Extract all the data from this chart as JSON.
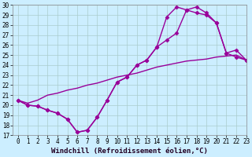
{
  "line1_x": [
    0,
    1,
    2,
    3,
    4,
    5,
    6,
    7,
    8,
    9,
    10,
    11,
    12,
    13,
    14,
    15,
    16,
    17,
    18,
    19,
    20,
    21,
    22,
    23
  ],
  "line1_y": [
    20.5,
    20.0,
    19.9,
    19.5,
    19.2,
    18.6,
    17.3,
    17.5,
    18.8,
    20.5,
    22.3,
    22.8,
    24.0,
    24.5,
    25.8,
    28.8,
    29.8,
    29.5,
    29.8,
    29.2,
    28.2,
    25.2,
    24.8,
    24.5
  ],
  "line1_markers": true,
  "line2_x": [
    0,
    1,
    2,
    3,
    4,
    5,
    6,
    7,
    8,
    9,
    10,
    11,
    12,
    13,
    14,
    15,
    16,
    17,
    18,
    19,
    20,
    21,
    22,
    23
  ],
  "line2_y": [
    20.5,
    20.2,
    20.5,
    21.0,
    21.2,
    21.5,
    21.7,
    22.0,
    22.2,
    22.5,
    22.8,
    23.0,
    23.2,
    23.5,
    23.8,
    24.0,
    24.2,
    24.4,
    24.5,
    24.6,
    24.8,
    24.9,
    25.0,
    24.5
  ],
  "line2_markers": false,
  "line3_x": [
    0,
    1,
    2,
    3,
    4,
    5,
    6,
    7,
    8,
    9,
    10,
    11,
    12,
    13,
    14,
    15,
    16,
    17,
    18,
    19,
    20,
    21,
    22,
    23
  ],
  "line3_y": [
    20.5,
    20.0,
    19.9,
    19.5,
    19.2,
    18.6,
    17.3,
    17.5,
    18.8,
    20.5,
    22.3,
    22.8,
    24.0,
    24.5,
    25.8,
    26.5,
    27.2,
    29.5,
    29.2,
    29.0,
    28.2,
    25.2,
    25.5,
    24.5
  ],
  "line3_markers": true,
  "color": "#990099",
  "bg_color": "#cceeff",
  "grid_color": "#aacccc",
  "ylim": [
    17,
    30
  ],
  "xlim": [
    -0.5,
    23
  ],
  "yticks": [
    17,
    18,
    19,
    20,
    21,
    22,
    23,
    24,
    25,
    26,
    27,
    28,
    29,
    30
  ],
  "xticks": [
    0,
    1,
    2,
    3,
    4,
    5,
    6,
    7,
    8,
    9,
    10,
    11,
    12,
    13,
    14,
    15,
    16,
    17,
    18,
    19,
    20,
    21,
    22,
    23
  ],
  "xlabel": "Windchill (Refroidissement éolien,°C)",
  "marker": "D",
  "markersize": 2.5,
  "linewidth": 1.0,
  "xlabel_fontsize": 6.5,
  "tick_fontsize": 5.5
}
